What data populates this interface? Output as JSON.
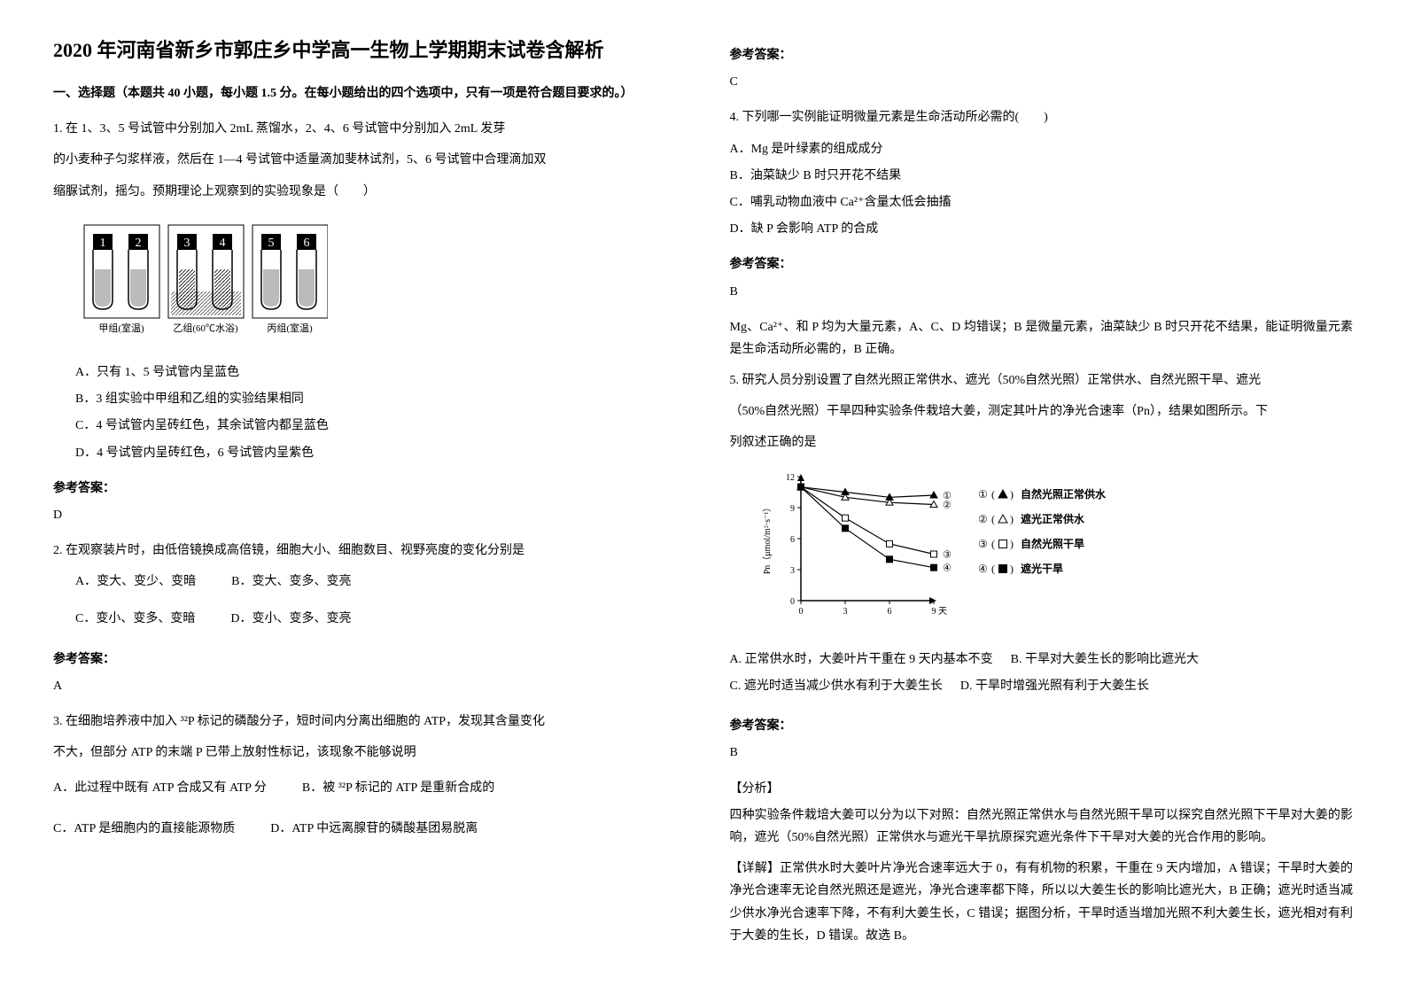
{
  "title": "2020 年河南省新乡市郭庄乡中学高一生物上学期期末试卷含解析",
  "section1_title": "一、选择题（本题共 40 小题，每小题 1.5 分。在每小题给出的四个选项中，只有一项是符合题目要求的。）",
  "q1": {
    "text1": "1. 在 1、3、5 号试管中分别加入 2mL 蒸馏水，2、4、6 号试管中分别加入 2mL 发芽",
    "text2": "的小麦种子匀浆样液，然后在 1—4 号试管中适量滴加斐林试剂，5、6 号试管中合理滴加双",
    "text3": "缩脲试剂，摇匀。预期理论上观察到的实验现象是（　　）",
    "optA": "A．只有 1、5 号试管内呈蓝色",
    "optB": "B．3 组实验中甲组和乙组的实验结果相同",
    "optC": "C．4 号试管内呈砖红色，其余试管内都呈蓝色",
    "optD": "D．4 号试管内呈砖红色，6 号试管内呈紫色"
  },
  "q1_figure": {
    "tubes": [
      "1",
      "2",
      "3",
      "4",
      "5",
      "6"
    ],
    "group_labels": [
      "甲组(室温)",
      "乙组(60℃水浴)",
      "丙组(室温)"
    ],
    "tube_colors": [
      "#ffffff",
      "#ffffff",
      "#ffffff",
      "#ffffff",
      "#ffffff",
      "#ffffff"
    ],
    "hatch_tubes": [
      2,
      3
    ],
    "border_color": "#000000"
  },
  "answer_label": "参考答案：",
  "q1_answer": "D",
  "q2": {
    "text": "2. 在观察装片时，由低倍镜换成高倍镜，细胞大小、细胞数目、视野亮度的变化分别是",
    "optA": "A．变大、变少、变暗",
    "optB": "B．变大、变多、变亮",
    "optC": "C．变小、变多、变暗",
    "optD": "D．变小、变多、变亮"
  },
  "q2_answer": "A",
  "q3": {
    "text1": "3. 在细胞培养液中加入 ³²P 标记的磷酸分子，短时间内分离出细胞的 ATP，发现其含量变化",
    "text2": "不大，但部分 ATP 的末端 P 已带上放射性标记，该现象不能够说明",
    "optA": "A．此过程中既有 ATP 合成又有 ATP 分",
    "optB": "B．被 ³²P 标记的 ATP 是重新合成的",
    "optC": "C．ATP 是细胞内的直接能源物质",
    "optD": "D．ATP 中远离腺苷的磷酸基团易脱离"
  },
  "q3_answer": "C",
  "q4": {
    "text": "4. 下列哪一实例能证明微量元素是生命活动所必需的(　　)",
    "optA": "A．Mg 是叶绿素的组成成分",
    "optB": "B．油菜缺少 B 时只开花不结果",
    "optC": "C．哺乳动物血液中 Ca²⁺含量太低会抽搐",
    "optD": "D．缺 P 会影响 ATP 的合成"
  },
  "q4_answer": "B",
  "q4_analysis": "Mg、Ca²⁺、和 P 均为大量元素，A、C、D 均错误；B 是微量元素，油菜缺少 B 时只开花不结果，能证明微量元素是生命活动所必需的，B 正确。",
  "q5": {
    "text1": "5. 研究人员分别设置了自然光照正常供水、遮光（50%自然光照）正常供水、自然光照干旱、遮光",
    "text2": "（50%自然光照）干旱四种实验条件栽培大姜，测定其叶片的净光合速率（Pn），结果如图所示。下",
    "text3": "列叙述正确的是",
    "optA": "A. 正常供水时，大姜叶片干重在 9 天内基本不变",
    "optB": "B. 干旱对大姜生长的影响比遮光大",
    "optC": "C. 遮光时适当减少供水有利于大姜生长",
    "optD": "D. 干旱时增强光照有利于大姜生长"
  },
  "q5_figure": {
    "type": "line",
    "xlabel": "天",
    "ylabel": "Pn（μmol/m²·s⁻¹）",
    "ylim": [
      0,
      12
    ],
    "xlim": [
      0,
      9
    ],
    "ytick_step": 3,
    "xtick_step": 3,
    "series": [
      {
        "id": "①",
        "marker": "▲",
        "marker_fill": "#000000",
        "label": "自然光照正常供水",
        "data": [
          [
            0,
            11
          ],
          [
            3,
            10.5
          ],
          [
            6,
            10
          ],
          [
            9,
            10.2
          ]
        ]
      },
      {
        "id": "②",
        "marker": "△",
        "marker_fill": "#ffffff",
        "label": "遮光正常供水",
        "data": [
          [
            0,
            11
          ],
          [
            3,
            10
          ],
          [
            6,
            9.5
          ],
          [
            9,
            9.3
          ]
        ]
      },
      {
        "id": "③",
        "marker": "□",
        "marker_fill": "#ffffff",
        "label": "自然光照干旱",
        "data": [
          [
            0,
            11
          ],
          [
            3,
            8
          ],
          [
            6,
            5.5
          ],
          [
            9,
            4.5
          ]
        ]
      },
      {
        "id": "④",
        "marker": "■",
        "marker_fill": "#000000",
        "label": "遮光干旱",
        "data": [
          [
            0,
            11
          ],
          [
            3,
            7
          ],
          [
            6,
            4
          ],
          [
            9,
            3.2
          ]
        ]
      }
    ],
    "line_color": "#000000",
    "axis_color": "#000000"
  },
  "q5_answer": "B",
  "analysis_label": "【分析】",
  "detail_label": "【详解】",
  "q5_analysis1": "四种实验条件栽培大姜可以分为以下对照：自然光照正常供水与自然光照干旱可以探究自然光照下干旱对大姜的影响，遮光（50%自然光照）正常供水与遮光干旱抗原探究遮光条件下干旱对大姜的光合作用的影响。",
  "q5_analysis2": "正常供水时大姜叶片净光合速率远大于 0，有有机物的积累，干重在 9 天内增加，A 错误；干旱时大姜的净光合速率无论自然光照还是遮光，净光合速率都下降，所以以大姜生长的影响比遮光大，B 正确；遮光时适当减少供水净光合速率下降，不有利大姜生长，C 错误；据图分析，干旱时适当增加光照不利大姜生长，遮光相对有利于大姜的生长，D 错误。故选 B。"
}
